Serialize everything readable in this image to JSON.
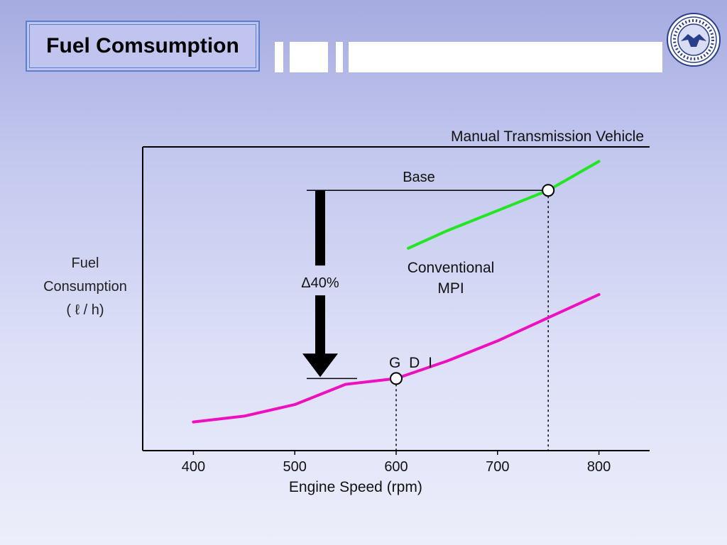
{
  "slide": {
    "title": "Fuel Comsumption"
  },
  "colors": {
    "base_line": "#22e622",
    "gdi_line": "#ee10c0",
    "accent": "#5b7fd0"
  },
  "chart_data": {
    "type": "line",
    "title": "Manual Transmission Vehicle",
    "xlabel": "Engine Speed (rpm)",
    "ylabel_lines": [
      "Fuel",
      "Consumption",
      "( ℓ / h)"
    ],
    "xlim": [
      350,
      850
    ],
    "ylim": [
      0,
      100
    ],
    "xticks": [
      400,
      500,
      600,
      700,
      800
    ],
    "grid": false,
    "series": [
      {
        "name": "Conventional MPI",
        "name_lines": [
          "Conventional",
          "MPI"
        ],
        "color": "#22e622",
        "x": [
          612,
          650,
          700,
          750,
          800
        ],
        "y": [
          65,
          71,
          78,
          85,
          95
        ]
      },
      {
        "name": "G D I",
        "color": "#ee10c0",
        "x": [
          400,
          450,
          500,
          550,
          600,
          650,
          700,
          750,
          800
        ],
        "y": [
          5,
          7,
          11,
          18,
          20,
          26,
          33,
          41,
          49
        ]
      }
    ],
    "annotations": {
      "base_label": "Base",
      "delta_label": "Δ40%",
      "base_point": {
        "x": 750,
        "y": 85
      },
      "gdi_point": {
        "x": 600,
        "y": 20
      }
    }
  }
}
